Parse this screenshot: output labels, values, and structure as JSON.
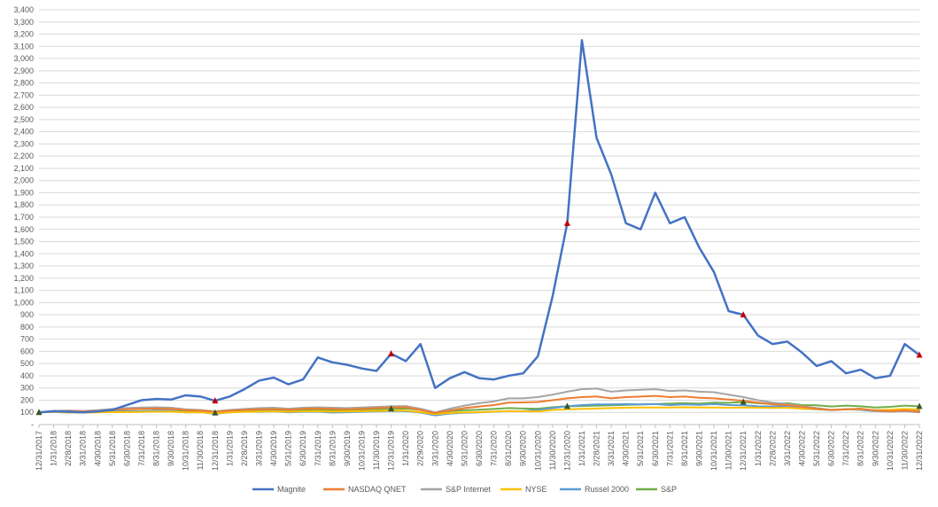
{
  "chart_data": {
    "type": "line",
    "title": "",
    "xlabel": "",
    "ylabel": "",
    "ylim": [
      0,
      3400
    ],
    "y_ticks": [
      0,
      100,
      200,
      300,
      400,
      500,
      600,
      700,
      800,
      900,
      1000,
      1100,
      1200,
      1300,
      1400,
      1500,
      1600,
      1700,
      1800,
      1900,
      2000,
      2100,
      2200,
      2300,
      2400,
      2500,
      2600,
      2700,
      2800,
      2900,
      3000,
      3100,
      3200,
      3300,
      3400
    ],
    "y_tick_labels": [
      "-",
      "100",
      "200",
      "300",
      "400",
      "500",
      "600",
      "700",
      "800",
      "900",
      "1,000",
      "1,100",
      "1,200",
      "1,300",
      "1,400",
      "1,500",
      "1,600",
      "1,700",
      "1,800",
      "1,900",
      "2,000",
      "2,100",
      "2,200",
      "2,300",
      "2,400",
      "2,500",
      "2,600",
      "2,700",
      "2,800",
      "2,900",
      "3,000",
      "3,100",
      "3,200",
      "3,300",
      "3,400"
    ],
    "x_tick_labels": [
      "12/31/2017",
      "1/31/2018",
      "2/28/2018",
      "3/31/2018",
      "4/30/2018",
      "5/31/2018",
      "6/30/2018",
      "7/31/2018",
      "8/31/2018",
      "9/30/2018",
      "10/31/2018",
      "11/30/2018",
      "12/31/2018",
      "1/31/2019",
      "2/28/2019",
      "3/31/2019",
      "4/30/2019",
      "5/31/2019",
      "6/30/2019",
      "7/31/2019",
      "8/31/2019",
      "9/30/2019",
      "10/31/2019",
      "11/30/2019",
      "12/31/2019",
      "1/31/2020",
      "2/29/2020",
      "3/31/2020",
      "4/30/2020",
      "5/31/2020",
      "6/30/2020",
      "7/31/2020",
      "8/31/2020",
      "9/30/2020",
      "10/31/2020",
      "11/30/2020",
      "12/31/2020",
      "1/31/2021",
      "2/28/2021",
      "3/31/2021",
      "4/30/2021",
      "5/31/2021",
      "6/30/2021",
      "7/31/2021",
      "8/31/2021",
      "9/30/2021",
      "10/31/2021",
      "11/30/2021",
      "12/31/2021",
      "1/31/2022",
      "2/28/2022",
      "3/31/2022",
      "4/30/2022",
      "5/31/2022",
      "6/30/2022",
      "7/31/2022",
      "8/31/2022",
      "9/30/2022",
      "10/31/2022",
      "11/30/2022",
      "12/31/2022"
    ],
    "legend_position": "bottom",
    "grid": true,
    "series": [
      {
        "name": "Magnite",
        "color": "#4472C4",
        "width": 2.5,
        "values": [
          100,
          110,
          105,
          100,
          108,
          120,
          160,
          200,
          210,
          205,
          240,
          230,
          195,
          230,
          290,
          360,
          385,
          330,
          370,
          550,
          510,
          490,
          460,
          440,
          580,
          520,
          660,
          300,
          380,
          430,
          380,
          370,
          400,
          420,
          560,
          1050,
          1650,
          3150,
          2350,
          2050,
          1650,
          1600,
          1900,
          1650,
          1700,
          1450,
          1250,
          930,
          900,
          730,
          660,
          680,
          590,
          480,
          520,
          420,
          450,
          380,
          400,
          660,
          570
        ]
      },
      {
        "name": "NASDAQ QNET",
        "color": "#ED7D31",
        "width": 2,
        "values": [
          100,
          108,
          110,
          108,
          112,
          120,
          125,
          128,
          132,
          128,
          118,
          115,
          105,
          115,
          120,
          125,
          128,
          122,
          130,
          132,
          128,
          125,
          130,
          135,
          140,
          142,
          120,
          95,
          115,
          135,
          148,
          160,
          180,
          182,
          185,
          200,
          215,
          225,
          230,
          215,
          225,
          230,
          235,
          225,
          230,
          220,
          215,
          205,
          195,
          180,
          165,
          160,
          145,
          130,
          120,
          125,
          130,
          115,
          110,
          115,
          105
        ]
      },
      {
        "name": "S&P Internet",
        "color": "#A5A5A5",
        "width": 2,
        "values": [
          100,
          112,
          115,
          112,
          118,
          128,
          135,
          140,
          142,
          138,
          125,
          120,
          108,
          120,
          128,
          135,
          138,
          130,
          138,
          142,
          138,
          135,
          140,
          145,
          150,
          152,
          130,
          100,
          130,
          155,
          175,
          190,
          215,
          215,
          225,
          245,
          270,
          290,
          295,
          270,
          280,
          285,
          290,
          275,
          280,
          270,
          265,
          245,
          225,
          200,
          180,
          170,
          150,
          135,
          120,
          125,
          130,
          110,
          105,
          110,
          100
        ]
      },
      {
        "name": "NYSE",
        "color": "#FFC000",
        "width": 2,
        "values": [
          100,
          104,
          100,
          98,
          100,
          102,
          102,
          104,
          106,
          106,
          100,
          100,
          92,
          100,
          104,
          106,
          108,
          104,
          108,
          110,
          106,
          108,
          110,
          112,
          115,
          114,
          102,
          85,
          95,
          100,
          102,
          106,
          110,
          108,
          108,
          120,
          125,
          128,
          132,
          135,
          138,
          140,
          140,
          140,
          142,
          140,
          140,
          138,
          140,
          138,
          136,
          138,
          130,
          128,
          120,
          126,
          124,
          118,
          122,
          128,
          124
        ]
      },
      {
        "name": "Russel 2000",
        "color": "#5B9BD5",
        "width": 2,
        "values": [
          100,
          103,
          98,
          100,
          103,
          108,
          110,
          110,
          114,
          112,
          100,
          102,
          88,
          100,
          106,
          104,
          108,
          100,
          104,
          106,
          98,
          102,
          104,
          108,
          112,
          110,
          98,
          75,
          90,
          96,
          100,
          105,
          110,
          110,
          120,
          135,
          150,
          160,
          165,
          165,
          168,
          165,
          168,
          160,
          165,
          162,
          168,
          160,
          158,
          150,
          148,
          150,
          130,
          125,
          118,
          125,
          120,
          110,
          115,
          120,
          115
        ]
      },
      {
        "name": "S&P",
        "color": "#70AD47",
        "width": 2,
        "values": [
          100,
          106,
          102,
          100,
          102,
          106,
          108,
          110,
          115,
          114,
          105,
          108,
          96,
          105,
          110,
          114,
          118,
          110,
          118,
          120,
          118,
          120,
          123,
          126,
          130,
          132,
          120,
          96,
          110,
          118,
          122,
          128,
          135,
          132,
          130,
          142,
          150,
          152,
          155,
          158,
          162,
          165,
          168,
          172,
          175,
          172,
          180,
          178,
          185,
          175,
          170,
          175,
          160,
          158,
          148,
          155,
          150,
          140,
          145,
          155,
          150
        ]
      }
    ],
    "marker_points": [
      {
        "series": "Magnite",
        "index": 12,
        "color": "#C00000"
      },
      {
        "series": "Magnite",
        "index": 24,
        "color": "#C00000"
      },
      {
        "series": "Magnite",
        "index": 36,
        "color": "#C00000"
      },
      {
        "series": "Magnite",
        "index": 48,
        "color": "#C00000"
      },
      {
        "series": "Magnite",
        "index": 60,
        "color": "#C00000"
      },
      {
        "series": "S&P",
        "index": 0,
        "color": "#375623"
      },
      {
        "series": "S&P",
        "index": 12,
        "color": "#375623"
      },
      {
        "series": "S&P",
        "index": 24,
        "color": "#375623"
      },
      {
        "series": "S&P",
        "index": 36,
        "color": "#375623"
      },
      {
        "series": "S&P",
        "index": 48,
        "color": "#375623"
      },
      {
        "series": "S&P",
        "index": 60,
        "color": "#375623"
      }
    ]
  }
}
